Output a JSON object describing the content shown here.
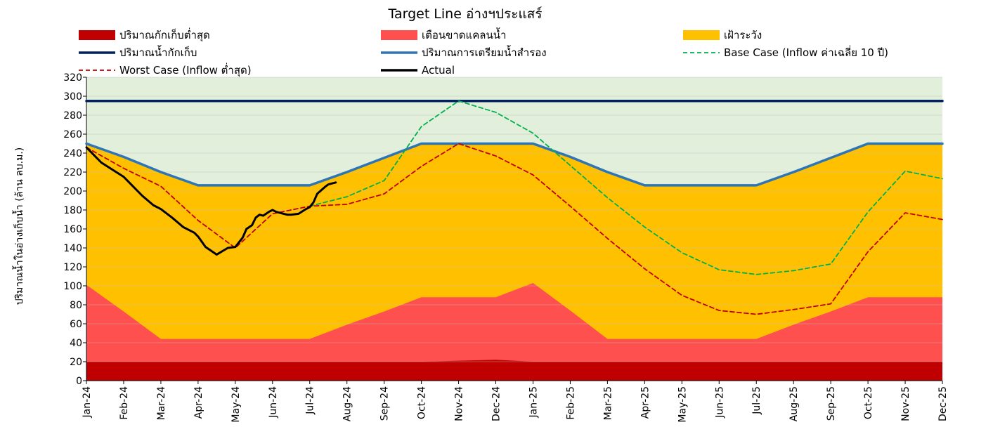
{
  "chart_data": {
    "type": "area",
    "title": "Target Line อ่างฯประแสร์",
    "ylabel": "ปริมาณน้ำในอ่างเก็บน้ำ (ล้าน ลบ.ม.)",
    "xlabel": "",
    "ylim": [
      0,
      320
    ],
    "yticks": [
      0,
      20,
      40,
      60,
      80,
      100,
      120,
      140,
      160,
      180,
      200,
      220,
      240,
      260,
      280,
      300,
      320
    ],
    "grid": true,
    "legend_placement": "top",
    "categories": [
      "Jan-24",
      "Feb-24",
      "Mar-24",
      "Apr-24",
      "May-24",
      "Jun-24",
      "Jul-24",
      "Aug-24",
      "Sep-24",
      "Oct-24",
      "Nov-24",
      "Dec-24",
      "Jan-25",
      "Feb-25",
      "Mar-25",
      "Apr-25",
      "May-25",
      "Jun-25",
      "Jul-25",
      "Aug-25",
      "Sep-25",
      "Oct-25",
      "Nov-25",
      "Dec-25"
    ],
    "colors": {
      "background_zone": "#e2efda",
      "min_storage": "#c00000",
      "shortage_warning": "#ff5050",
      "watch": "#ffc000",
      "capacity": "#002060",
      "reserve": "#2e75b6",
      "base_case": "#00b050",
      "worst_case": "#c00000",
      "actual": "#000000"
    },
    "series": [
      {
        "name": "ปริมาณกักเก็บต่ำสุด",
        "kind": "area",
        "color": "#c00000",
        "values": [
          20,
          20,
          20,
          20,
          20,
          20,
          20,
          20,
          20,
          20,
          21,
          22,
          20,
          20,
          20,
          20,
          20,
          20,
          20,
          20,
          20,
          20,
          20,
          20
        ]
      },
      {
        "name": "เตือนขาดแคลนน้ำ",
        "kind": "area",
        "color": "#ff5050",
        "values": [
          101,
          73,
          44,
          44,
          44,
          44,
          44,
          59,
          73,
          88,
          88,
          88,
          103,
          74,
          44,
          44,
          44,
          44,
          44,
          59,
          73,
          88,
          88,
          88
        ]
      },
      {
        "name": "เฝ้าระวัง",
        "kind": "area",
        "color": "#ffc000",
        "values": [
          250,
          236,
          220,
          206,
          206,
          206,
          206,
          220,
          235,
          250,
          250,
          250,
          250,
          236,
          220,
          206,
          206,
          206,
          206,
          220,
          235,
          250,
          250,
          250
        ]
      },
      {
        "name": "ปริมาณน้ำกักเก็บ",
        "kind": "line",
        "color": "#002060",
        "values": [
          295,
          295,
          295,
          295,
          295,
          295,
          295,
          295,
          295,
          295,
          295,
          295,
          295,
          295,
          295,
          295,
          295,
          295,
          295,
          295,
          295,
          295,
          295,
          295
        ]
      },
      {
        "name": "ปริมาณการเตรียมน้ำสำรอง",
        "kind": "line",
        "color": "#2e75b6",
        "values": [
          250,
          236,
          220,
          206,
          206,
          206,
          206,
          220,
          235,
          250,
          250,
          250,
          250,
          236,
          220,
          206,
          206,
          206,
          206,
          220,
          235,
          250,
          250,
          250
        ]
      },
      {
        "name": "Base Case (Inflow ค่าเฉลี่ย 10 ปี)",
        "kind": "dashed",
        "color": "#00b050",
        "values": [
          null,
          null,
          null,
          null,
          null,
          null,
          184,
          194,
          211,
          268,
          295,
          283,
          261,
          227,
          193,
          162,
          135,
          117,
          112,
          116,
          123,
          178,
          221,
          213
        ]
      },
      {
        "name": "Worst Case (Inflow ต่ำสุด)",
        "kind": "dashed",
        "color": "#c00000",
        "values": [
          246,
          224,
          205,
          169,
          140,
          176,
          184,
          186,
          197,
          226,
          250,
          237,
          217,
          184,
          150,
          118,
          90,
          74,
          70,
          75,
          81,
          136,
          177,
          170
        ]
      },
      {
        "name": "Actual",
        "kind": "line",
        "color": "#000000",
        "x": [
          0,
          0.2,
          0.4,
          0.6,
          0.8,
          1.0,
          1.2,
          1.5,
          1.8,
          2.0,
          2.3,
          2.6,
          2.9,
          3.0,
          3.2,
          3.5,
          3.8,
          4.0,
          4.2,
          4.3,
          4.45,
          4.55,
          4.65,
          4.75,
          4.9,
          5.0,
          5.1,
          5.2,
          5.3,
          5.4,
          5.5,
          5.7,
          5.9,
          6.0,
          6.1,
          6.2,
          6.4,
          6.5,
          6.6,
          6.7
        ],
        "values": [
          246,
          238,
          230,
          225,
          220,
          215,
          207,
          195,
          185,
          181,
          172,
          162,
          156,
          152,
          141,
          133,
          140,
          141,
          151,
          160,
          164,
          172,
          175,
          174,
          178,
          180,
          178,
          177,
          176,
          175,
          175,
          176,
          181,
          183,
          188,
          197,
          204,
          207,
          208,
          209
        ]
      }
    ],
    "legend": [
      {
        "label": "ปริมาณกักเก็บต่ำสุด",
        "style": "box",
        "color": "#c00000"
      },
      {
        "label": "เตือนขาดแคลนน้ำ",
        "style": "box",
        "color": "#ff5050"
      },
      {
        "label": "เฝ้าระวัง",
        "style": "box",
        "color": "#ffc000"
      },
      {
        "label": "ปริมาณน้ำกักเก็บ",
        "style": "line",
        "color": "#002060"
      },
      {
        "label": "ปริมาณการเตรียมน้ำสำรอง",
        "style": "line",
        "color": "#2e75b6"
      },
      {
        "label": "Base Case (Inflow ค่าเฉลี่ย 10 ปี)",
        "style": "dash",
        "color": "#00b050"
      },
      {
        "label": "Worst Case (Inflow ต่ำสุด)",
        "style": "dash",
        "color": "#c00000"
      },
      {
        "label": "Actual",
        "style": "line",
        "color": "#000000"
      }
    ]
  }
}
